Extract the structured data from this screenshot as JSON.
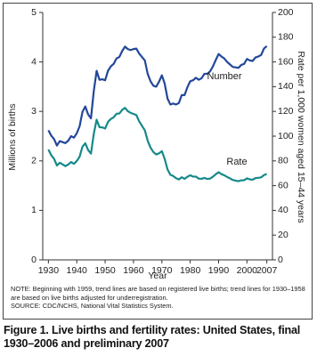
{
  "chart_data": {
    "type": "line",
    "x_label": "Year",
    "y_label": "Millions of births",
    "y2_label": "Rate per 1,000 women aged 15–44 years",
    "x": [
      1930,
      1931,
      1932,
      1933,
      1934,
      1935,
      1936,
      1937,
      1938,
      1939,
      1940,
      1941,
      1942,
      1943,
      1944,
      1945,
      1946,
      1947,
      1948,
      1949,
      1950,
      1951,
      1952,
      1953,
      1954,
      1955,
      1956,
      1957,
      1958,
      1959,
      1960,
      1961,
      1962,
      1963,
      1964,
      1965,
      1966,
      1967,
      1968,
      1969,
      1970,
      1971,
      1972,
      1973,
      1974,
      1975,
      1976,
      1977,
      1978,
      1979,
      1980,
      1981,
      1982,
      1983,
      1984,
      1985,
      1986,
      1987,
      1988,
      1989,
      1990,
      1991,
      1992,
      1993,
      1994,
      1995,
      1996,
      1997,
      1998,
      1999,
      2000,
      2001,
      2002,
      2003,
      2004,
      2005,
      2006,
      2007
    ],
    "series": [
      {
        "name": "Number",
        "color": "#23479a",
        "values": [
          2.62,
          2.51,
          2.44,
          2.31,
          2.4,
          2.38,
          2.36,
          2.41,
          2.5,
          2.47,
          2.56,
          2.7,
          2.99,
          3.1,
          2.94,
          2.86,
          3.41,
          3.82,
          3.64,
          3.65,
          3.63,
          3.82,
          3.91,
          3.96,
          4.07,
          4.1,
          4.22,
          4.31,
          4.26,
          4.24,
          4.26,
          4.27,
          4.17,
          4.1,
          4.03,
          3.76,
          3.61,
          3.52,
          3.5,
          3.6,
          3.73,
          3.56,
          3.26,
          3.14,
          3.16,
          3.14,
          3.17,
          3.33,
          3.33,
          3.49,
          3.61,
          3.63,
          3.68,
          3.64,
          3.67,
          3.76,
          3.76,
          3.81,
          3.91,
          4.04,
          4.16,
          4.11,
          4.07,
          4.0,
          3.95,
          3.9,
          3.89,
          3.88,
          3.94,
          3.96,
          4.06,
          4.03,
          4.02,
          4.09,
          4.11,
          4.14,
          4.27,
          4.32
        ]
      },
      {
        "name": "Rate",
        "color": "#16898a",
        "axis": "y2",
        "values": [
          89.2,
          84.6,
          81.7,
          76.3,
          78.5,
          77.2,
          75.8,
          77.1,
          79.1,
          77.6,
          79.9,
          83.4,
          91.5,
          94.3,
          88.8,
          85.9,
          101.9,
          113.3,
          107.3,
          107.1,
          106.2,
          111.5,
          113.9,
          115.2,
          118.1,
          118.3,
          121.2,
          122.9,
          120.2,
          118.8,
          118.0,
          117.1,
          112.0,
          108.3,
          104.7,
          96.3,
          90.8,
          87.2,
          85.2,
          86.1,
          87.9,
          81.6,
          73.1,
          68.8,
          67.8,
          66.0,
          65.0,
          66.8,
          65.5,
          67.2,
          68.4,
          67.3,
          67.3,
          65.7,
          65.5,
          66.3,
          65.4,
          65.7,
          67.2,
          69.2,
          70.9,
          69.3,
          68.4,
          67.0,
          65.9,
          64.6,
          64.1,
          63.6,
          64.3,
          64.4,
          65.9,
          65.1,
          64.8,
          66.1,
          66.3,
          66.7,
          68.5,
          69.5
        ]
      }
    ],
    "xlim": [
      1928,
      2009
    ],
    "xticks": [
      1930,
      1940,
      1950,
      1960,
      1970,
      1980,
      1990,
      2000,
      2007
    ],
    "ylim": [
      0,
      5
    ],
    "yticks": [
      0,
      1,
      2,
      3,
      4,
      5
    ],
    "y2lim": [
      0,
      200
    ],
    "y2ticks": [
      0,
      20,
      40,
      60,
      80,
      100,
      120,
      140,
      160,
      180,
      200
    ]
  },
  "notes": [
    "NOTE: Beginning with 1959, trend lines are based on registered live births; trend lines for 1930–1958 are based on live births adjusted for underregistration.",
    "SOURCE: CDC/NCHS, National Vital Statistics System."
  ],
  "caption": "Figure 1. Live births and fertility rates: United States, final 1930–2006 and preliminary 2007"
}
